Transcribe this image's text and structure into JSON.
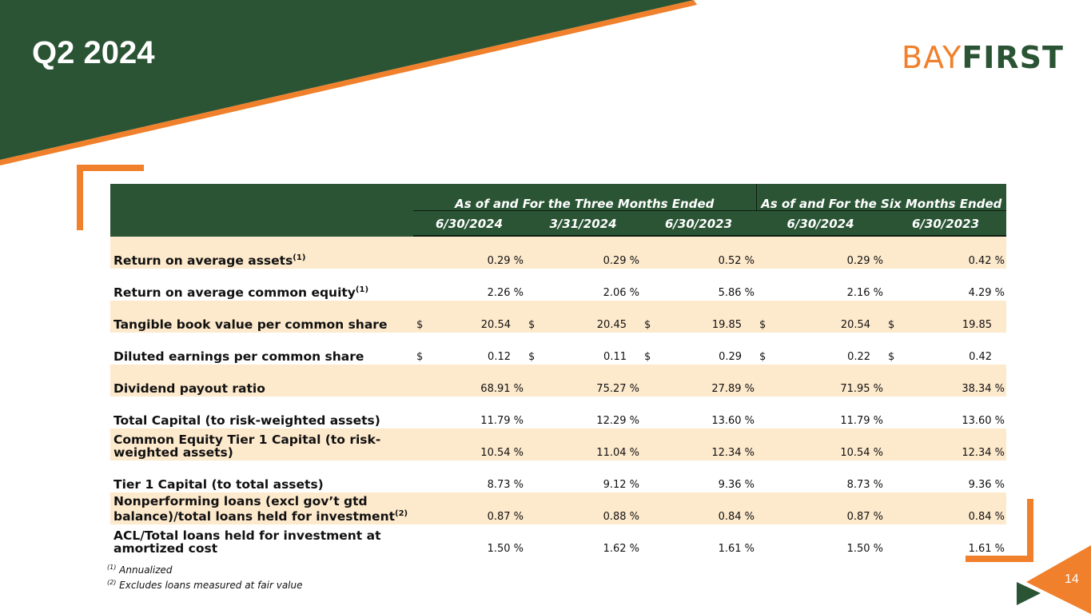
{
  "title": "Q2 2024",
  "logo": {
    "part1": "BAY",
    "part2": "FIRST"
  },
  "brand_colors": {
    "green": "#2a5434",
    "orange": "#f0802b",
    "row_shade": "#fde9cc"
  },
  "table": {
    "group_headers": [
      "As of and For the Three Months Ended",
      "As of and For the Six Months Ended"
    ],
    "date_headers": [
      "6/30/2024",
      "3/31/2024",
      "6/30/2023",
      "6/30/2024",
      "6/30/2023"
    ],
    "rows": [
      {
        "label": "Return on average assets",
        "sup": "(1)",
        "dollar": "",
        "values": [
          "0.29 %",
          "0.29 %",
          "0.52 %",
          "0.29 %",
          "0.42 %"
        ]
      },
      {
        "label": "Return on average common equity",
        "sup": "(1)",
        "dollar": "",
        "values": [
          "2.26 %",
          "2.06 %",
          "5.86 %",
          "2.16 %",
          "4.29 %"
        ]
      },
      {
        "label": "Tangible book value per common share",
        "sup": "",
        "dollar": "$",
        "values": [
          "20.54",
          "20.45",
          "19.85",
          "20.54",
          "19.85"
        ]
      },
      {
        "label": "Diluted earnings per common share",
        "sup": "",
        "dollar": "$",
        "values": [
          "0.12",
          "0.11",
          "0.29",
          "0.22",
          "0.42"
        ]
      },
      {
        "label": "Dividend payout ratio",
        "sup": "",
        "dollar": "",
        "values": [
          "68.91 %",
          "75.27 %",
          "27.89 %",
          "71.95 %",
          "38.34 %"
        ]
      },
      {
        "label": "Total Capital (to risk-weighted assets)",
        "sup": "",
        "dollar": "",
        "values": [
          "11.79 %",
          "12.29 %",
          "13.60 %",
          "11.79 %",
          "13.60 %"
        ]
      },
      {
        "label": "Common Equity Tier 1 Capital (to risk-weighted assets)",
        "sup": "",
        "dollar": "",
        "values": [
          "10.54 %",
          "11.04 %",
          "12.34 %",
          "10.54 %",
          "12.34 %"
        ]
      },
      {
        "label": "Tier 1 Capital (to total assets)",
        "sup": "",
        "dollar": "",
        "values": [
          "8.73 %",
          "9.12 %",
          "9.36 %",
          "8.73 %",
          "9.36 %"
        ]
      },
      {
        "label": "Nonperforming loans (excl gov’t gtd balance)/total loans held for investment",
        "sup": "(2)",
        "dollar": "",
        "values": [
          "0.87 %",
          "0.88 %",
          "0.84 %",
          "0.87 %",
          "0.84 %"
        ]
      },
      {
        "label": "ACL/Total loans held for investment at amortized cost",
        "sup": "",
        "dollar": "",
        "values": [
          "1.50 %",
          "1.62 %",
          "1.61 %",
          "1.50 %",
          "1.61 %"
        ]
      }
    ]
  },
  "footnotes": [
    {
      "mark": "(1)",
      "text": "Annualized"
    },
    {
      "mark": "(2)",
      "text": "Excludes loans measured at fair value"
    }
  ],
  "page_number": "14"
}
